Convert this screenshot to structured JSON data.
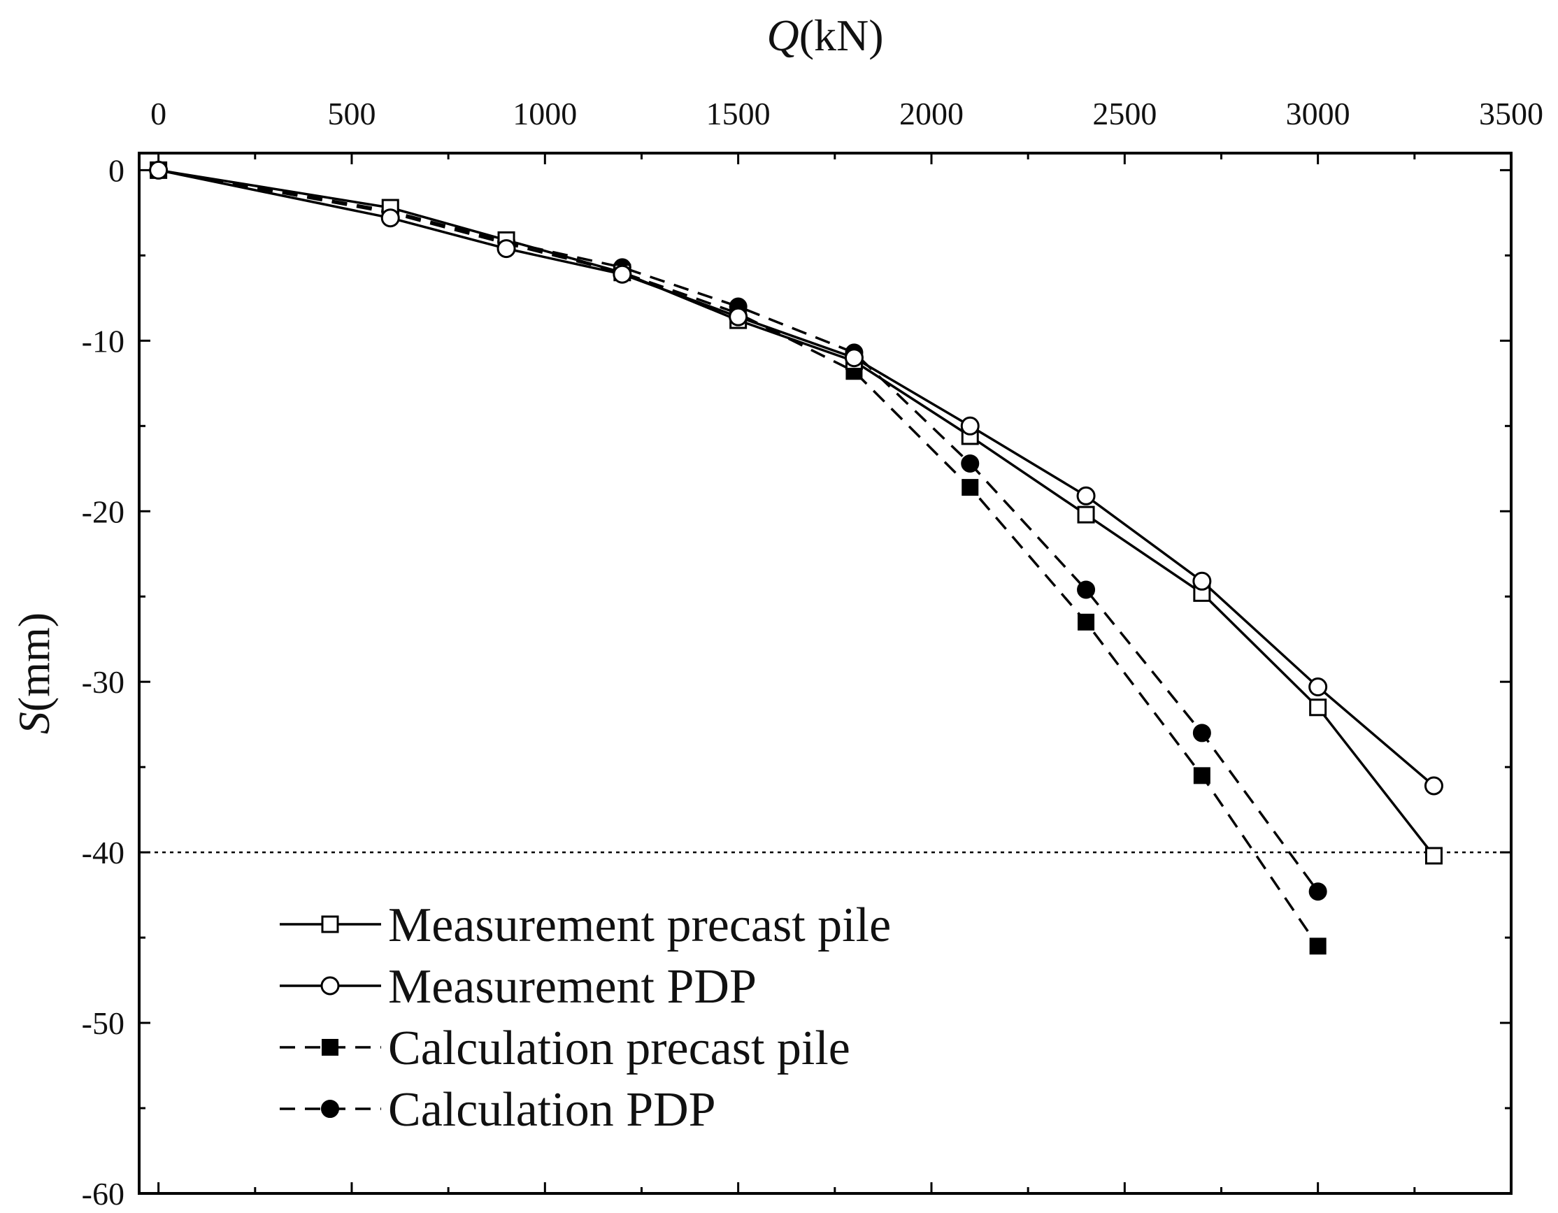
{
  "chart_data": {
    "type": "line",
    "title": "",
    "x_axis": {
      "title_var": "Q",
      "title_unit": "(kN)",
      "position": "top",
      "range": [
        -50,
        3500
      ],
      "ticks": [
        0,
        500,
        1000,
        1500,
        2000,
        2500,
        3000,
        3500
      ],
      "tick_labels": [
        "0",
        "500",
        "1000",
        "1500",
        "2000",
        "2500",
        "3000",
        "3500"
      ]
    },
    "y_axis": {
      "title_var": "S",
      "title_unit": "(mm)",
      "range": [
        -60,
        1
      ],
      "ticks": [
        0,
        -10,
        -20,
        -30,
        -40,
        -50,
        -60
      ],
      "tick_labels": [
        "0",
        "-10",
        "-20",
        "-30",
        "-40",
        "-50",
        "-60"
      ]
    },
    "reference_line": {
      "y": -40,
      "style": "dotted"
    },
    "legend_position": "lower-left",
    "series": [
      {
        "name": "Measurement precast pile",
        "line": "solid",
        "marker": "square-open",
        "x": [
          0,
          600,
          900,
          1200,
          1500,
          1800,
          2100,
          2400,
          2700,
          3000,
          3300
        ],
        "y": [
          0,
          -2.2,
          -4.1,
          -6.0,
          -8.8,
          -11.2,
          -15.6,
          -20.2,
          -24.8,
          -31.5,
          -40.2
        ]
      },
      {
        "name": "Measurement PDP",
        "line": "solid",
        "marker": "circle-open",
        "x": [
          0,
          600,
          900,
          1200,
          1500,
          1800,
          2100,
          2400,
          2700,
          3000,
          3300
        ],
        "y": [
          0,
          -2.8,
          -4.6,
          -6.1,
          -8.6,
          -11.0,
          -15.0,
          -19.1,
          -24.1,
          -30.3,
          -36.1
        ]
      },
      {
        "name": "Calculation precast pile",
        "line": "dashed",
        "marker": "square-filled",
        "x": [
          0,
          600,
          900,
          1200,
          1500,
          1800,
          2100,
          2400,
          2700,
          3000
        ],
        "y": [
          0,
          -2.5,
          -4.3,
          -6.0,
          -8.4,
          -11.8,
          -18.6,
          -26.5,
          -35.5,
          -45.5
        ]
      },
      {
        "name": "Calculation PDP",
        "line": "dashed",
        "marker": "circle-filled",
        "x": [
          0,
          600,
          900,
          1200,
          1500,
          1800,
          2100,
          2400,
          2700,
          3000
        ],
        "y": [
          0,
          -2.4,
          -4.2,
          -5.7,
          -8.0,
          -10.7,
          -17.2,
          -24.6,
          -33.0,
          -42.3
        ]
      }
    ]
  }
}
